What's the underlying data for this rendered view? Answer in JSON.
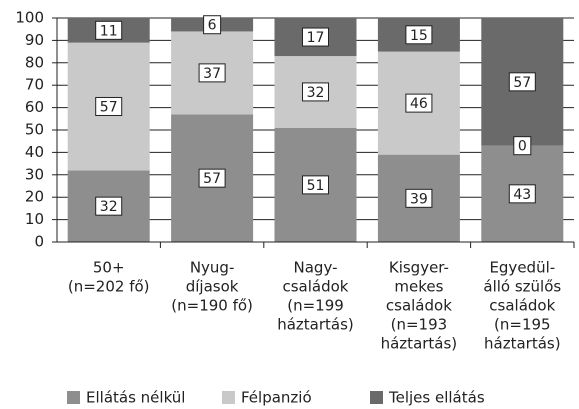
{
  "chart_data": {
    "type": "stacked_bar",
    "categories": [
      [
        "50+",
        "(n=202 fő)"
      ],
      [
        "Nyug-",
        "díjasok",
        "(n=190 fő)"
      ],
      [
        "Nagy-",
        "családok",
        "(n=199",
        "háztartás)"
      ],
      [
        "Kisgyer-",
        "mekes",
        "családok",
        "(n=193",
        "háztartás)"
      ],
      [
        "Egyedül-",
        "álló szülős",
        "családok",
        "(n=195",
        "háztartás)"
      ]
    ],
    "series": [
      {
        "name": "Ellátás nélkül",
        "color": "#8e8e8e",
        "values": [
          32,
          57,
          51,
          39,
          43
        ]
      },
      {
        "name": "Félpanzió",
        "color": "#c9c9c9",
        "values": [
          57,
          37,
          32,
          46,
          0
        ]
      },
      {
        "name": "Teljes ellátás",
        "color": "#6a6a6a",
        "values": [
          11,
          6,
          17,
          15,
          57
        ]
      }
    ],
    "ylim": [
      0,
      100
    ],
    "yticks": [
      0,
      10,
      20,
      30,
      40,
      50,
      60,
      70,
      80,
      90,
      100
    ],
    "grid": true,
    "legend": "bottom"
  }
}
